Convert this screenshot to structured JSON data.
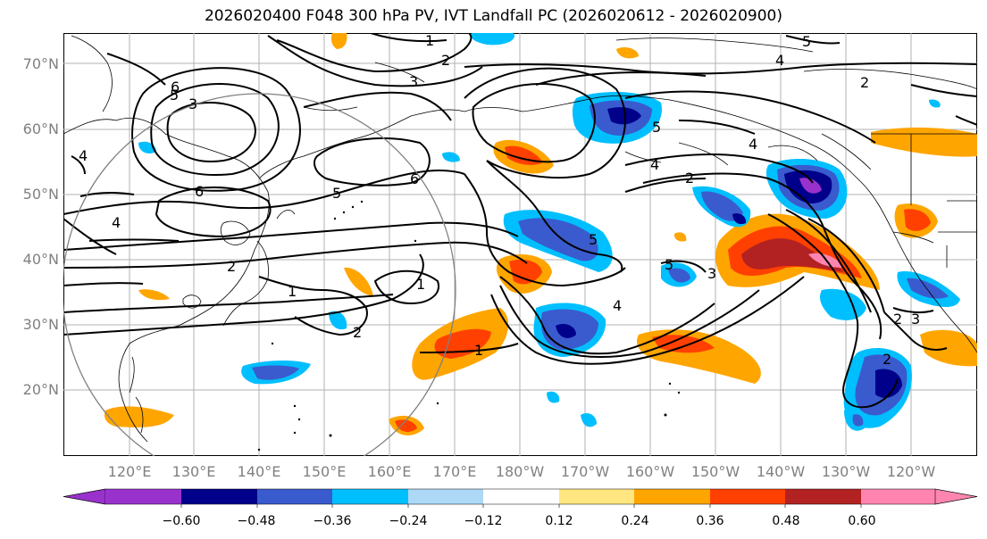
{
  "title": "2026020400 F048 300 hPa PV, IVT Landfall PC (2026020612 - 2026020900)",
  "lat_labels": [
    "70°N",
    "60°N",
    "50°N",
    "40°N",
    "30°N",
    "20°N"
  ],
  "lon_labels": [
    "120°E",
    "130°E",
    "140°E",
    "150°E",
    "160°E",
    "170°E",
    "180°W",
    "170°W",
    "160°W",
    "150°W",
    "140°W",
    "130°W",
    "120°W"
  ],
  "colorbar": {
    "ticks": [
      "−0.60",
      "−0.48",
      "−0.36",
      "−0.24",
      "−0.12",
      "0.12",
      "0.24",
      "0.36",
      "0.48",
      "0.60"
    ],
    "colors": [
      "#9932CC",
      "#00008B",
      "#3A5BCD",
      "#00BFFF",
      "#ADD8F6",
      "#FFFFFF",
      "#FFE680",
      "#FFA500",
      "#FF4000",
      "#B22222",
      "#FF85B0"
    ]
  },
  "contour_labels": [
    "1",
    "2",
    "3",
    "4",
    "5",
    "6"
  ],
  "colors": {
    "land_outline": "#000000",
    "grid": "#b0b0b0",
    "circle": "#808080"
  }
}
